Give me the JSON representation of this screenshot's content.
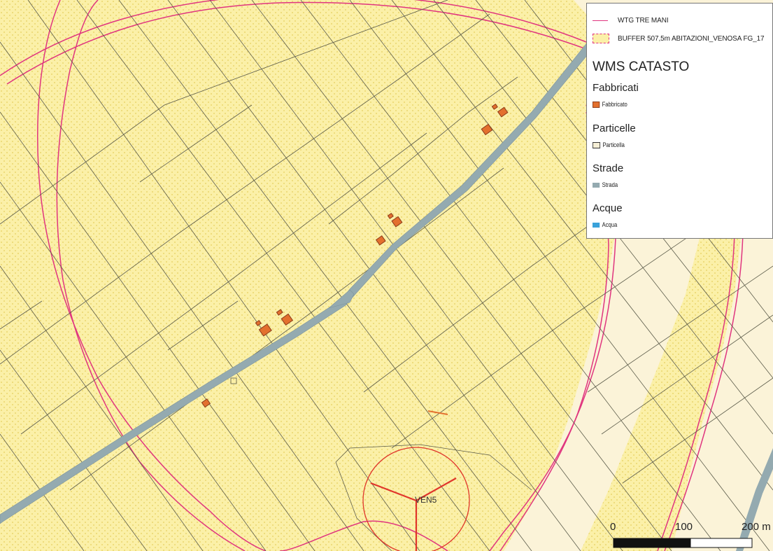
{
  "legend": {
    "layer_turbine": "WTG TRE MANI",
    "layer_buffer": "BUFFER 507,5m ABITAZIONI_VENOSA FG_17",
    "wms_title": "WMS CATASTO",
    "groups": [
      {
        "title": "Fabbricati",
        "item": "Fabbricato",
        "color": "#e3702e"
      },
      {
        "title": "Particelle",
        "item": "Particella",
        "color": "#f6efd6"
      },
      {
        "title": "Strade",
        "item": "Strada",
        "color": "#94aab0"
      },
      {
        "title": "Acque",
        "item": "Acqua",
        "color": "#3aa2da"
      }
    ]
  },
  "map": {
    "turbine_label": "VEN5",
    "colors": {
      "buffer": "#e0357f",
      "turbine": "#e0352b",
      "road": "#94aab0",
      "parcel_lines": "#5b5b4a",
      "background": "#fbf3d8",
      "buffer_fill": "#fbf0a8"
    }
  },
  "scalebar": {
    "labels": [
      "0",
      "100",
      "200 m"
    ]
  }
}
